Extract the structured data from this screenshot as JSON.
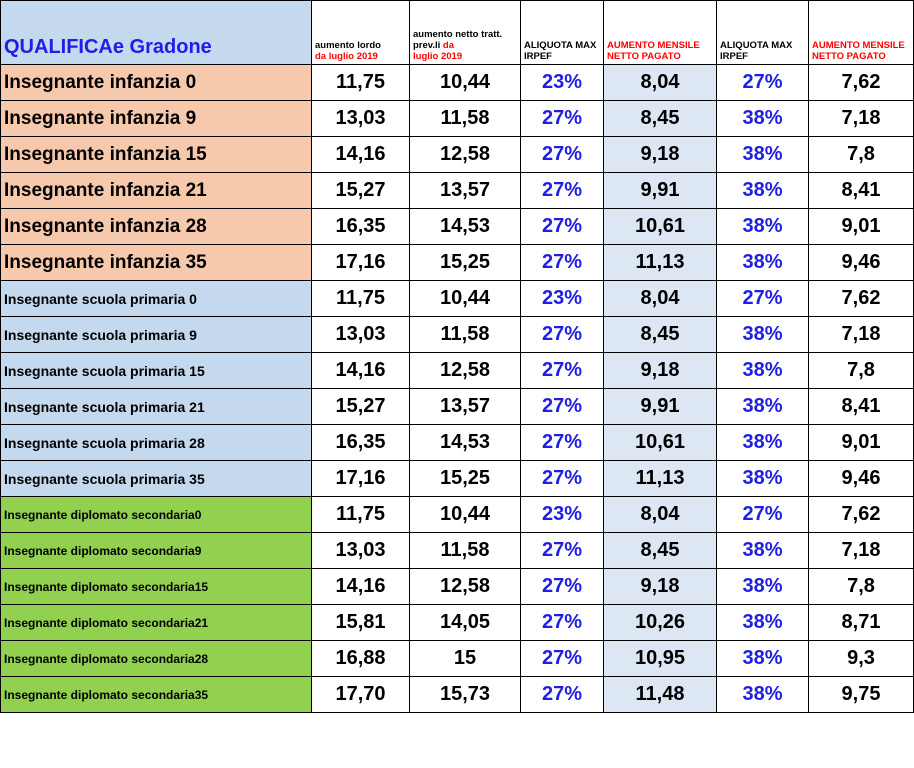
{
  "header": {
    "qualifica": "QUALIFICAe Gradone",
    "col1_black": "aumento lordo",
    "col1_red": "da luglio 2019",
    "col2_black": "aumento netto tratt. prev.li",
    "col2_red_a": "da",
    "col2_red_b": "luglio 2019",
    "col3": "ALIQUOTA MAX IRPEF",
    "col4": "AUMENTO MENSILE NETTO PAGATO",
    "col5": "ALIQUOTA MAX IRPEF",
    "col6": "AUMENTO MENSILE NETTO PAGATO"
  },
  "rows": [
    {
      "label": "Insegnante infanzia 0",
      "lordo": "11,75",
      "netto": "10,44",
      "aliq1": "23%",
      "aum1": "8,04",
      "aliq2": "27%",
      "aum2": "7,62"
    },
    {
      "label": "Insegnante infanzia 9",
      "lordo": "13,03",
      "netto": "11,58",
      "aliq1": "27%",
      "aum1": "8,45",
      "aliq2": "38%",
      "aum2": "7,18"
    },
    {
      "label": "Insegnante infanzia 15",
      "lordo": "14,16",
      "netto": "12,58",
      "aliq1": "27%",
      "aum1": "9,18",
      "aliq2": "38%",
      "aum2": "7,8"
    },
    {
      "label": "Insegnante infanzia 21",
      "lordo": "15,27",
      "netto": "13,57",
      "aliq1": "27%",
      "aum1": "9,91",
      "aliq2": "38%",
      "aum2": "8,41"
    },
    {
      "label": "Insegnante infanzia 28",
      "lordo": "16,35",
      "netto": "14,53",
      "aliq1": "27%",
      "aum1": "10,61",
      "aliq2": "38%",
      "aum2": "9,01"
    },
    {
      "label": "Insegnante infanzia 35",
      "lordo": "17,16",
      "netto": "15,25",
      "aliq1": "27%",
      "aum1": "11,13",
      "aliq2": "38%",
      "aum2": "9,46"
    },
    {
      "label": "Insegnante scuola primaria 0",
      "lordo": "11,75",
      "netto": "10,44",
      "aliq1": "23%",
      "aum1": "8,04",
      "aliq2": "27%",
      "aum2": "7,62"
    },
    {
      "label": "Insegnante scuola primaria 9",
      "lordo": "13,03",
      "netto": "11,58",
      "aliq1": "27%",
      "aum1": "8,45",
      "aliq2": "38%",
      "aum2": "7,18"
    },
    {
      "label": "Insegnante scuola primaria 15",
      "lordo": "14,16",
      "netto": "12,58",
      "aliq1": "27%",
      "aum1": "9,18",
      "aliq2": "38%",
      "aum2": "7,8"
    },
    {
      "label": "Insegnante scuola primaria 21",
      "lordo": "15,27",
      "netto": "13,57",
      "aliq1": "27%",
      "aum1": "9,91",
      "aliq2": "38%",
      "aum2": "8,41"
    },
    {
      "label": "Insegnante scuola primaria 28",
      "lordo": "16,35",
      "netto": "14,53",
      "aliq1": "27%",
      "aum1": "10,61",
      "aliq2": "38%",
      "aum2": "9,01"
    },
    {
      "label": "Insegnante scuola primaria 35",
      "lordo": "17,16",
      "netto": "15,25",
      "aliq1": "27%",
      "aum1": "11,13",
      "aliq2": "38%",
      "aum2": "9,46"
    },
    {
      "label": "Insegnante diplomato secondaria0",
      "lordo": "11,75",
      "netto": "10,44",
      "aliq1": "23%",
      "aum1": "8,04",
      "aliq2": "27%",
      "aum2": "7,62"
    },
    {
      "label": "Insegnante diplomato secondaria9",
      "lordo": "13,03",
      "netto": "11,58",
      "aliq1": "27%",
      "aum1": "8,45",
      "aliq2": "38%",
      "aum2": "7,18"
    },
    {
      "label": "Insegnante diplomato secondaria15",
      "lordo": "14,16",
      "netto": "12,58",
      "aliq1": "27%",
      "aum1": "9,18",
      "aliq2": "38%",
      "aum2": "7,8"
    },
    {
      "label": "Insegnante diplomato secondaria21",
      "lordo": "15,81",
      "netto": "14,05",
      "aliq1": "27%",
      "aum1": "10,26",
      "aliq2": "38%",
      "aum2": "8,71"
    },
    {
      "label": "Insegnante diplomato secondaria28",
      "lordo": "16,88",
      "netto": "15",
      "aliq1": "27%",
      "aum1": "10,95",
      "aliq2": "38%",
      "aum2": "9,3"
    },
    {
      "label": "Insegnante diplomato secondaria35",
      "lordo": "17,70",
      "netto": "15,73",
      "aliq1": "27%",
      "aum1": "11,48",
      "aliq2": "38%",
      "aum2": "9,75"
    }
  ]
}
